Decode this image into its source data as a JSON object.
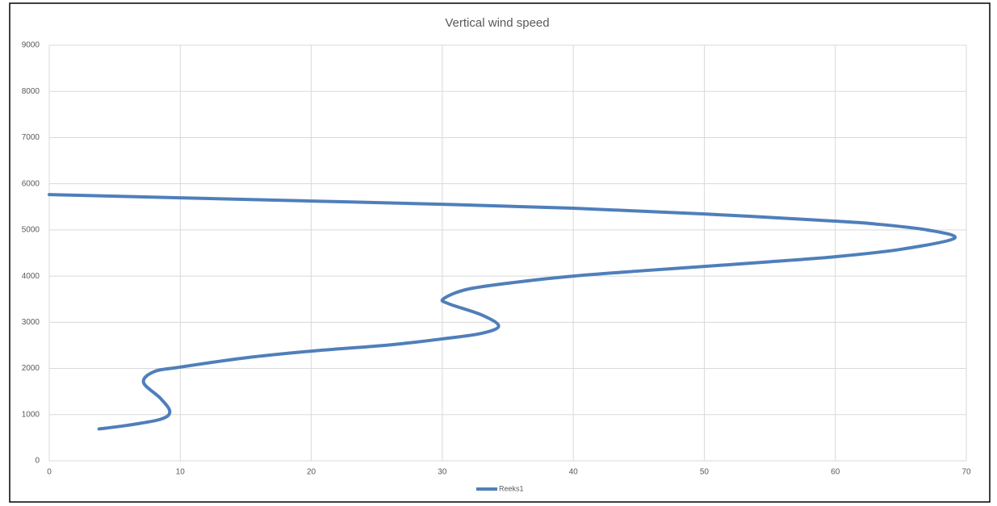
{
  "chart_data": {
    "type": "scatter-line",
    "title": "Vertical wind speed",
    "series": [
      {
        "name": "Reeks1",
        "color": "#4f7fba",
        "x": [
          3.8,
          6,
          8.5,
          9.2,
          8.5,
          7.2,
          8,
          10,
          15,
          20,
          26,
          30,
          33,
          34.3,
          33,
          30.5,
          30.1,
          32,
          36,
          40,
          45,
          50,
          55,
          60,
          65,
          69.1,
          67,
          63,
          60,
          50,
          40,
          30,
          20,
          10,
          0
        ],
        "values": [
          690,
          770,
          900,
          1065,
          1350,
          1695,
          1930,
          2030,
          2230,
          2375,
          2510,
          2640,
          2760,
          2920,
          3160,
          3400,
          3510,
          3720,
          3880,
          4000,
          4110,
          4210,
          4310,
          4420,
          4580,
          4820,
          5000,
          5130,
          5190,
          5345,
          5470,
          5555,
          5625,
          5695,
          5765
        ]
      }
    ],
    "xlim": [
      0,
      70
    ],
    "xticks": [
      0,
      10,
      20,
      30,
      40,
      50,
      60,
      70
    ],
    "ylim": [
      0,
      9000
    ],
    "yticks": [
      0,
      1000,
      2000,
      3000,
      4000,
      5000,
      6000,
      7000,
      8000,
      9000
    ],
    "grid": true,
    "legend": "bottom"
  }
}
